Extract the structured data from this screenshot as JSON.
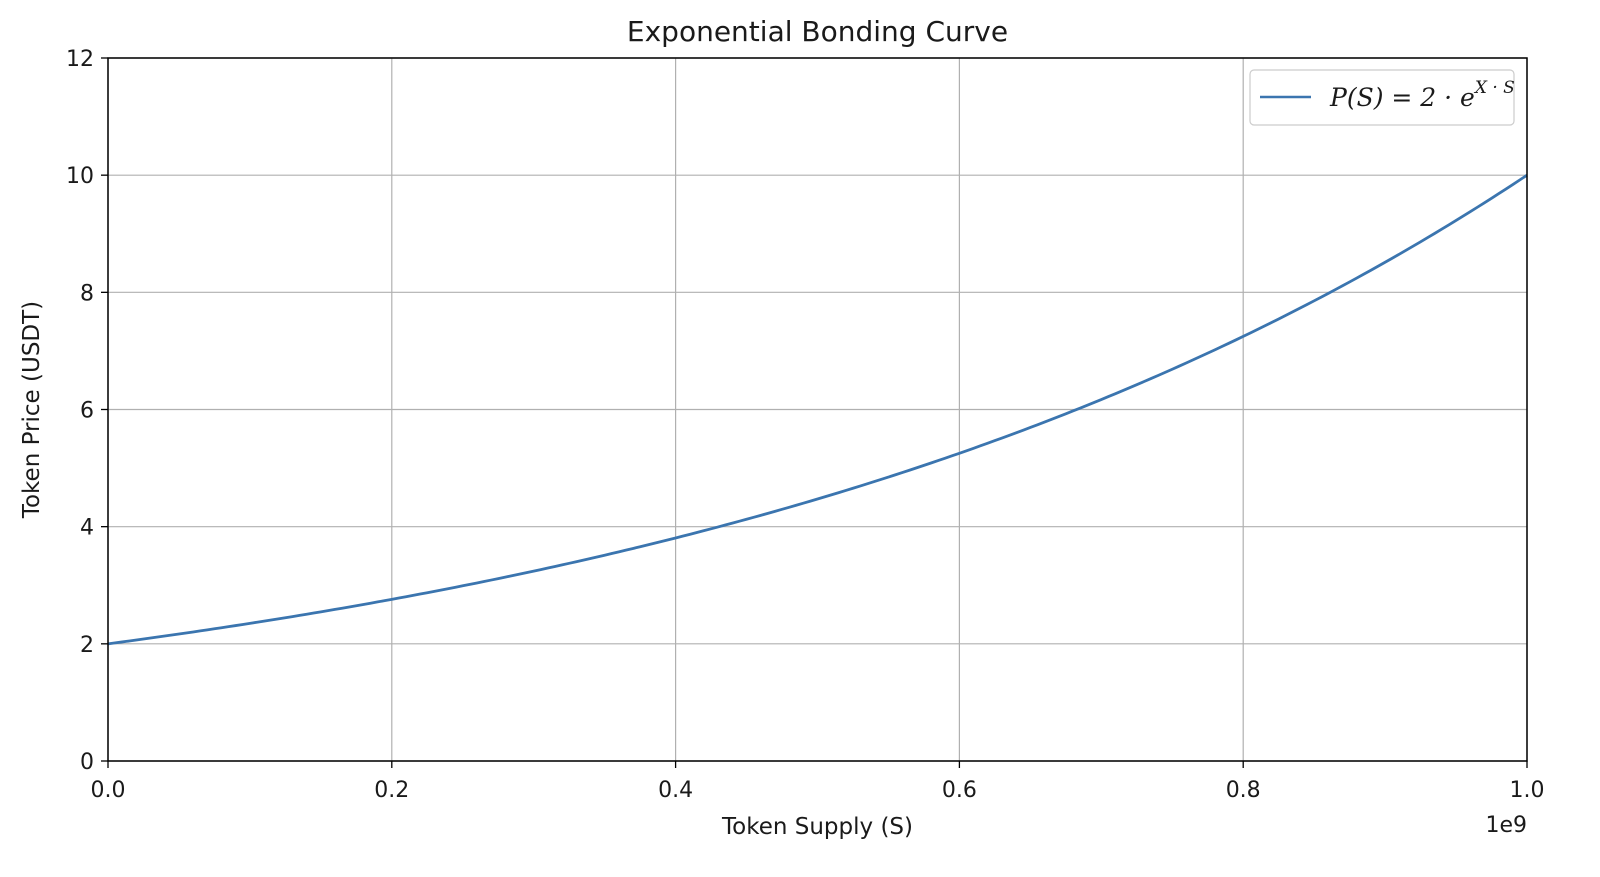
{
  "chart_data": {
    "type": "line",
    "title": "Exponential Bonding Curve",
    "xlabel": "Token Supply (S)",
    "ylabel": "Token Price (USDT)",
    "x_offset_text": "1e9",
    "xlim": [
      0.0,
      1.0
    ],
    "ylim": [
      0,
      12
    ],
    "x_scale_factor": 1000000000,
    "x_ticks": [
      "0.0",
      "0.2",
      "0.4",
      "0.6",
      "0.8",
      "1.0"
    ],
    "y_ticks": [
      "0",
      "2",
      "4",
      "6",
      "8",
      "10",
      "12"
    ],
    "grid": true,
    "legend_position": "top-right",
    "series": [
      {
        "name": "P(S) = 2 · e^(X·S)",
        "legend": {
          "base": "P(S) = 2 · e",
          "exponent": "X · S"
        },
        "color": "#3b75af",
        "x": [
          0.0,
          0.05,
          0.1,
          0.15,
          0.2,
          0.25,
          0.3,
          0.35,
          0.4,
          0.45,
          0.5,
          0.55,
          0.6,
          0.65,
          0.7,
          0.75,
          0.8,
          0.85,
          0.9,
          0.95,
          1.0
        ],
        "y": [
          2.0,
          2.17,
          2.35,
          2.55,
          2.76,
          2.99,
          3.25,
          3.52,
          3.81,
          4.13,
          4.47,
          4.85,
          5.25,
          5.69,
          6.17,
          6.69,
          7.25,
          7.85,
          8.51,
          9.22,
          10.0
        ]
      }
    ]
  }
}
